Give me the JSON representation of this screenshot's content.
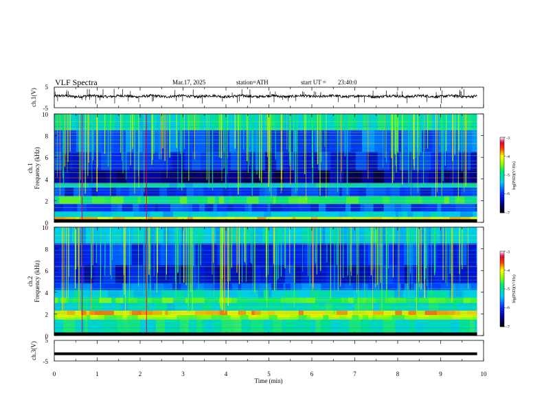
{
  "header": {
    "title": "VLF Spectra",
    "date": "Mar.17, 2025",
    "station": "station=ATH",
    "start": "start UT =",
    "start_time": "23:40:0"
  },
  "chart_data": [
    {
      "type": "line",
      "id": "ch1",
      "ylabel": "ch.1(V)",
      "yticks": [
        "5",
        "-5"
      ],
      "ylim": [
        -5,
        5
      ],
      "xlim": [
        0,
        10
      ],
      "baseline": 0.6,
      "amplitude": 0.6,
      "data_end": 9.85
    },
    {
      "type": "heatmap",
      "id": "spec1",
      "ylabel_line1": "ch.1",
      "ylabel_line2": "Frequency (kHz)",
      "yticks": [
        "10",
        "8",
        "6",
        "4",
        "2",
        "0"
      ],
      "ylim": [
        0,
        10
      ],
      "xlim": [
        0,
        10
      ],
      "data_end": 9.85,
      "colorbar": {
        "label": "log(PSD)(V²/Hz)",
        "ticks": [
          "-3",
          "-4",
          "-5",
          "-6",
          "-7"
        ],
        "range": [
          -7,
          -3
        ]
      },
      "bands": [
        {
          "f": [
            0.0,
            0.3
          ],
          "v": -7.0
        },
        {
          "f": [
            0.3,
            0.5
          ],
          "v": -4.0
        },
        {
          "f": [
            0.5,
            1.0
          ],
          "v": -5.3
        },
        {
          "f": [
            1.0,
            1.7
          ],
          "v": -5.9
        },
        {
          "f": [
            1.7,
            2.4
          ],
          "v": -4.8
        },
        {
          "f": [
            2.4,
            3.2
          ],
          "v": -6.0
        },
        {
          "f": [
            3.2,
            3.6
          ],
          "v": -5.2
        },
        {
          "f": [
            3.6,
            4.8
          ],
          "v": -6.5
        },
        {
          "f": [
            4.8,
            6.5
          ],
          "v": -6.1
        },
        {
          "f": [
            6.5,
            8.5
          ],
          "v": -5.8
        },
        {
          "f": [
            8.5,
            10.0
          ],
          "v": -5.1
        }
      ],
      "red_events": [
        0.65,
        2.15
      ]
    },
    {
      "type": "heatmap",
      "id": "spec2",
      "ylabel_line1": "ch.2",
      "ylabel_line2": "Frequency (kHz)",
      "yticks": [
        "10",
        "8",
        "6",
        "4",
        "2",
        "0"
      ],
      "ylim": [
        0,
        10
      ],
      "xlim": [
        0,
        10
      ],
      "data_end": 9.85,
      "colorbar": {
        "label": "log(PSD)(V²/Hz)",
        "ticks": [
          "-3",
          "-4",
          "-5",
          "-6",
          "-7"
        ],
        "range": [
          -7,
          -3
        ]
      },
      "bands": [
        {
          "f": [
            0.0,
            0.3
          ],
          "v": -7.0
        },
        {
          "f": [
            0.3,
            1.5
          ],
          "v": -5.0
        },
        {
          "f": [
            1.5,
            1.9
          ],
          "v": -4.4
        },
        {
          "f": [
            1.9,
            2.3
          ],
          "v": -3.9
        },
        {
          "f": [
            2.3,
            3.0
          ],
          "v": -5.1
        },
        {
          "f": [
            3.0,
            3.5
          ],
          "v": -4.7
        },
        {
          "f": [
            3.5,
            4.2
          ],
          "v": -5.2
        },
        {
          "f": [
            4.2,
            4.8
          ],
          "v": -5.8
        },
        {
          "f": [
            4.8,
            6.5
          ],
          "v": -6.2
        },
        {
          "f": [
            6.5,
            8.5
          ],
          "v": -6.0
        },
        {
          "f": [
            8.5,
            10.0
          ],
          "v": -5.3
        }
      ],
      "red_events": [
        0.65,
        2.15
      ]
    },
    {
      "type": "line",
      "id": "ch3",
      "ylabel": "ch.3(V)",
      "yticks": [
        "5",
        "-5"
      ],
      "ylim": [
        -5,
        5
      ],
      "xlim": [
        0,
        10
      ],
      "baseline": -1.5,
      "amplitude": 0.0,
      "data_end": 9.85,
      "xlabel": "Time (min)",
      "xticks": [
        "0",
        "1",
        "2",
        "3",
        "4",
        "5",
        "6",
        "7",
        "8",
        "9",
        "10"
      ]
    }
  ]
}
